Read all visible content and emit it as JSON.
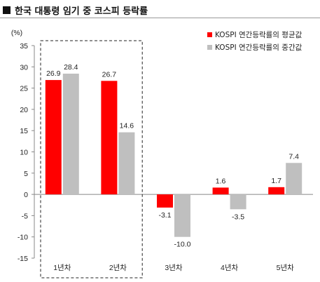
{
  "chart_data": {
    "type": "bar",
    "title": "한국 대통령 임기 중 코스피 등락률",
    "ylabel": "(%)",
    "xlabel": "",
    "categories": [
      "1년차",
      "2년차",
      "3년차",
      "4년차",
      "5년차"
    ],
    "series": [
      {
        "name": "KOSPI 연간등락률의 평균값",
        "values": [
          26.9,
          26.7,
          -3.1,
          1.6,
          1.7
        ],
        "color": "#ff0000"
      },
      {
        "name": "KOSPI 연간등락률의 중간값",
        "values": [
          28.4,
          14.6,
          -10.0,
          -3.5,
          7.4
        ],
        "color": "#bfbfbf"
      }
    ],
    "value_labels": [
      [
        "26.9",
        "26.7",
        "-3.1",
        "1.6",
        "1.7"
      ],
      [
        "28.4",
        "14.6",
        "-10.0",
        "-3.5",
        "7.4"
      ]
    ],
    "ylim": [
      -15,
      35
    ],
    "yticks": [
      35,
      30,
      25,
      20,
      15,
      10,
      5,
      0,
      -5,
      -10,
      -15
    ],
    "grid": false,
    "legend_position": "top-right",
    "highlighted_categories": [
      "1년차",
      "2년차"
    ]
  }
}
